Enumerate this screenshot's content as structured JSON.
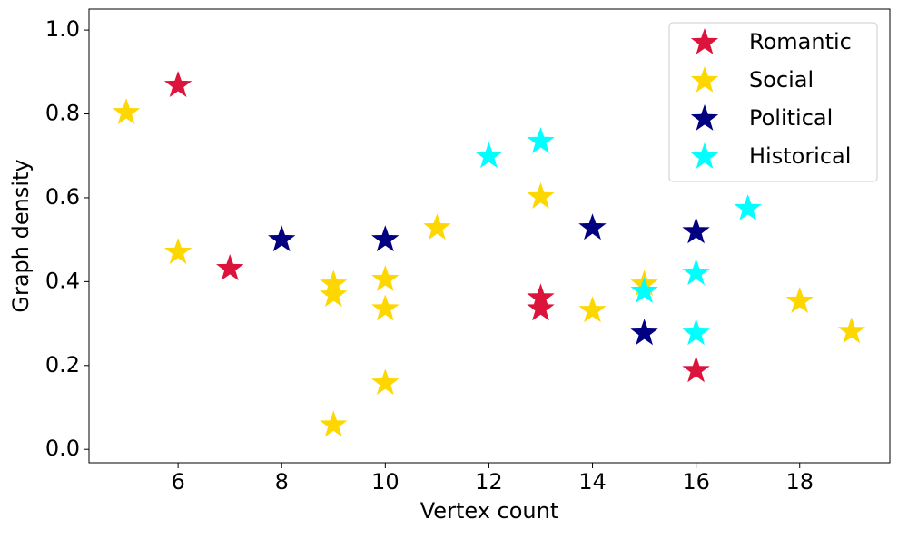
{
  "chart_data": {
    "type": "scatter",
    "x_label": "Vertex count",
    "y_label": "Graph density",
    "xlim": [
      4.28,
      19.74
    ],
    "ylim": [
      -0.032,
      1.05
    ],
    "xticks": [
      6,
      8,
      10,
      12,
      14,
      16,
      18
    ],
    "yticks": [
      {
        "value": 0,
        "label": "0.0"
      },
      0.2,
      0.4,
      0.6,
      0.8,
      {
        "value": 1,
        "label": "1.0"
      }
    ],
    "legend": "upper right",
    "series": [
      {
        "name": "Romantic",
        "color": "#dc143c",
        "x": [
          6,
          7,
          13,
          13,
          16
        ],
        "values": [
          0.868,
          0.431,
          0.361,
          0.335,
          0.188
        ]
      },
      {
        "name": "Social",
        "color": "#ffd700",
        "x": [
          5,
          6,
          9,
          9,
          9,
          10,
          10,
          10,
          11,
          13,
          14,
          15,
          18,
          19
        ],
        "values": [
          0.803,
          0.47,
          0.394,
          0.368,
          0.058,
          0.405,
          0.335,
          0.158,
          0.528,
          0.602,
          0.331,
          0.394,
          0.353,
          0.281
        ]
      },
      {
        "name": "Political",
        "color": "#000080",
        "x": [
          8,
          10,
          14,
          15,
          16
        ],
        "values": [
          0.5,
          0.5,
          0.528,
          0.277,
          0.519
        ]
      },
      {
        "name": "Historical",
        "color": "#00ffff",
        "x": [
          12,
          13,
          15,
          16,
          16,
          17
        ],
        "values": [
          0.699,
          0.734,
          0.377,
          0.42,
          0.277,
          0.574
        ]
      }
    ]
  }
}
